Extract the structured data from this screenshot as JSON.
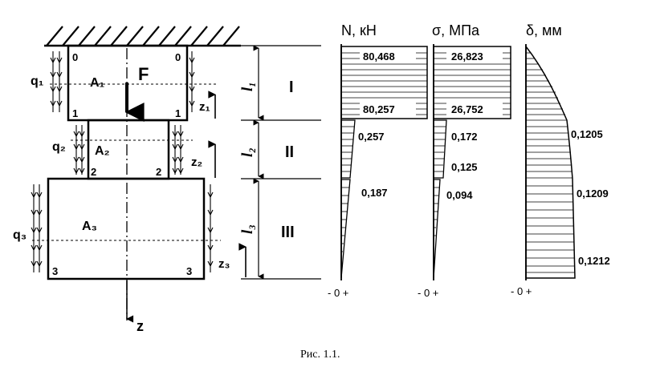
{
  "headers": {
    "n": "N, кН",
    "sigma": "σ, МПа",
    "delta": "δ, мм"
  },
  "rod": {
    "force": "F",
    "axis": "z",
    "areas": [
      "A₁",
      "A₂",
      "A₃"
    ],
    "loads": [
      "q₁",
      "q₂",
      "q₃"
    ],
    "coords": [
      "z₁",
      "z₂",
      "z₃"
    ],
    "lengths": [
      "l₁",
      "l₂",
      "l₃"
    ],
    "sections": [
      "I",
      "II",
      "III"
    ],
    "points": [
      "0",
      "1",
      "2",
      "3"
    ]
  },
  "diagram_values": {
    "n": [
      "80,468",
      "80,257",
      "0,257",
      "0,187"
    ],
    "sigma": [
      "26,823",
      "26,752",
      "0,172",
      "0,125",
      "0,094"
    ],
    "delta": [
      "0,1205",
      "0,1209",
      "0,1212"
    ]
  },
  "sign_labels": {
    "n": "- 0 +",
    "sigma": "- 0 +",
    "delta": "- 0 +"
  },
  "caption": "Рис. 1.1."
}
